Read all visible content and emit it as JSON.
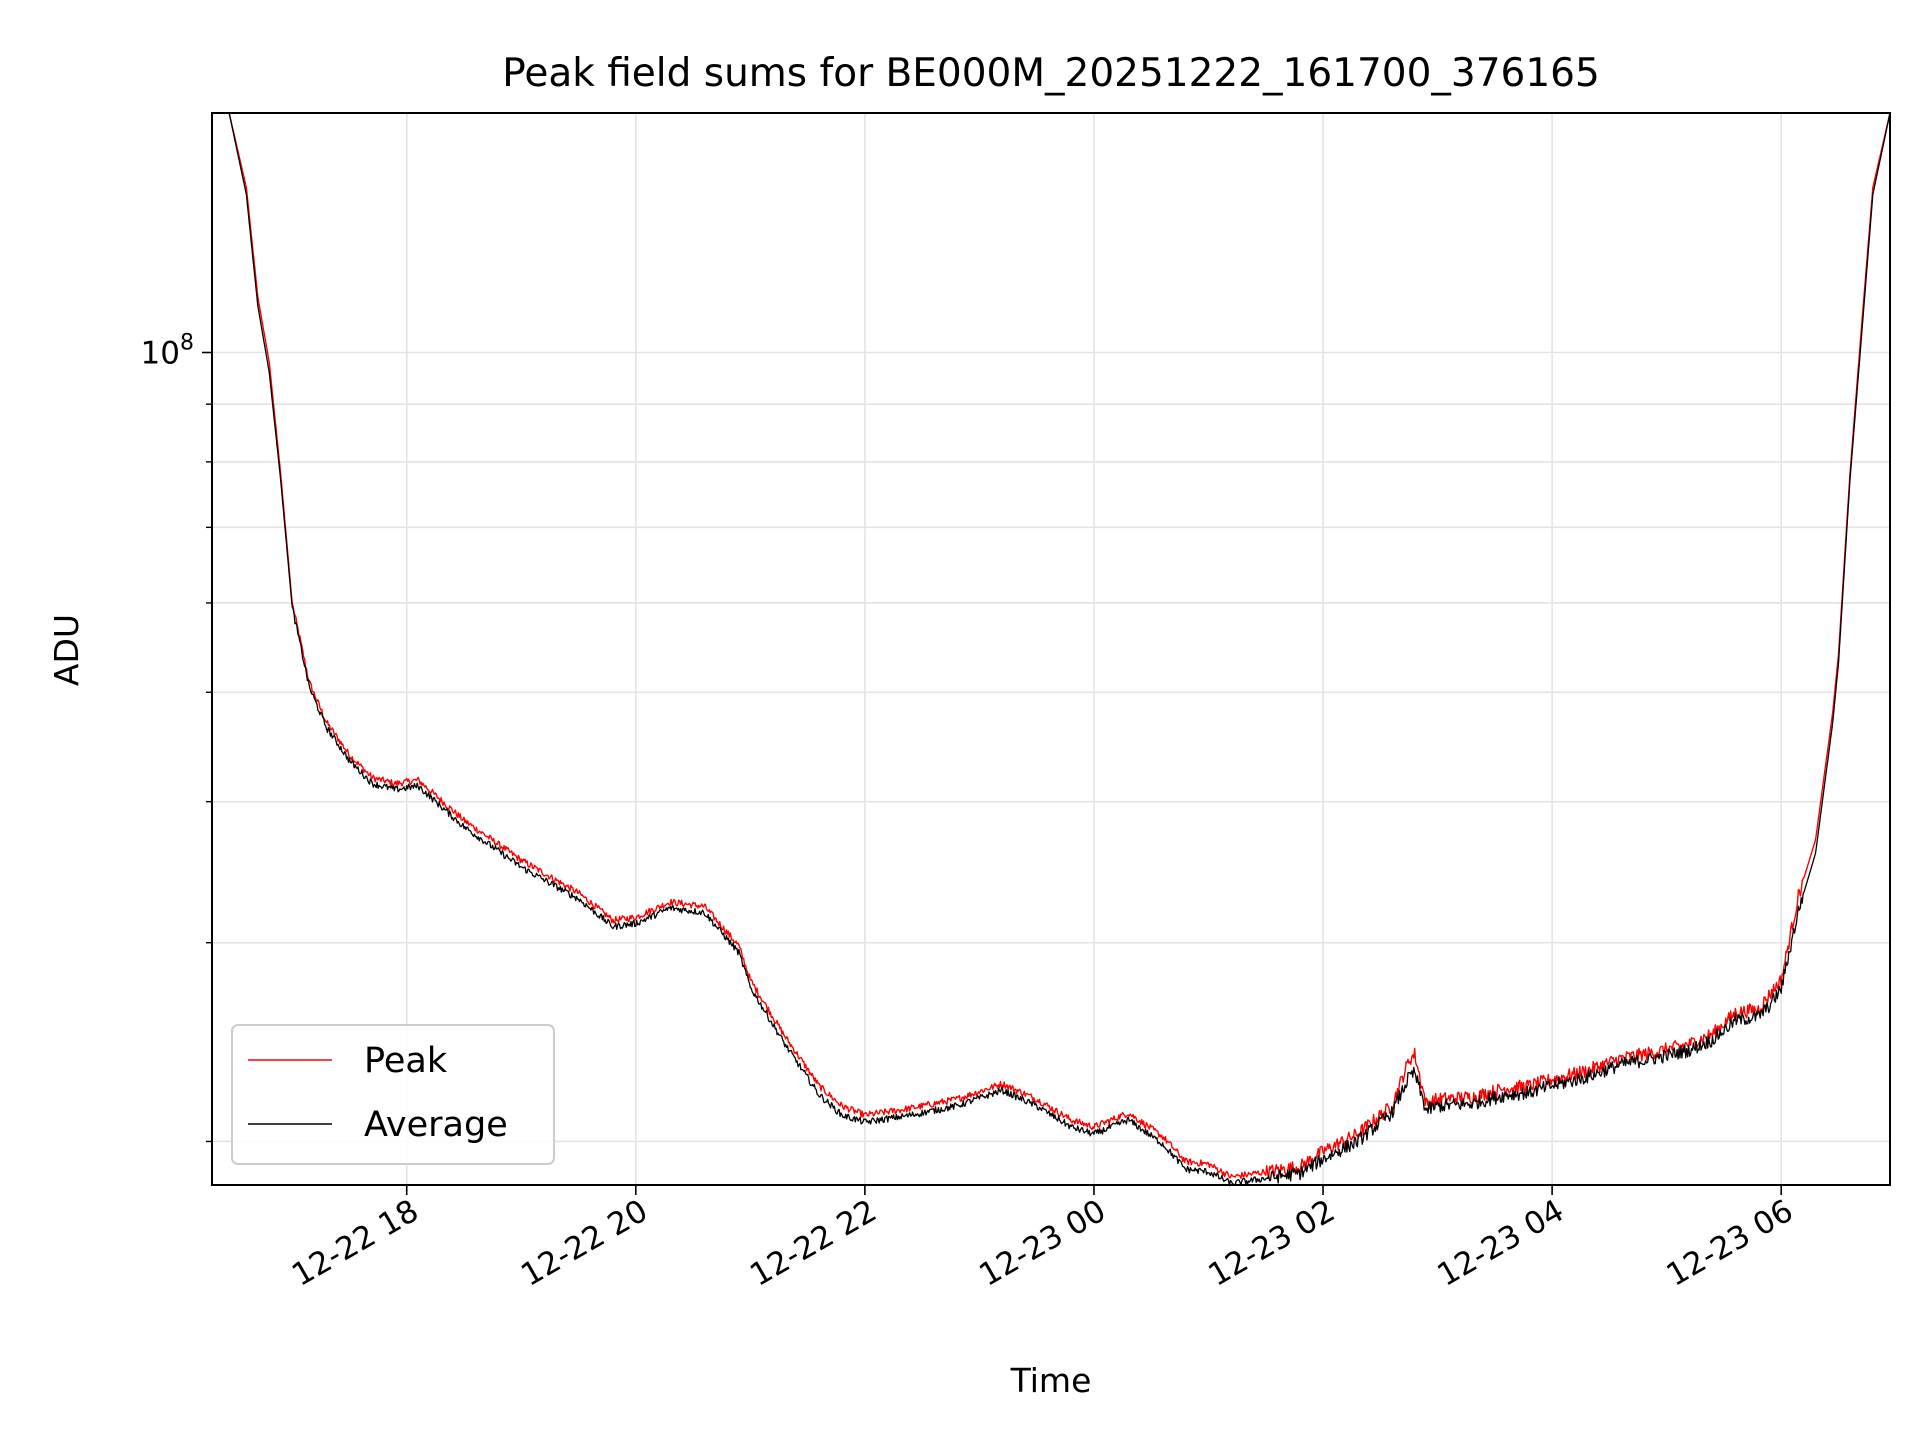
{
  "chart_data": {
    "type": "line",
    "title": "Peak field sums for BE000M_20251222_161700_376165",
    "xlabel": "Time",
    "ylabel": "ADU",
    "yscale": "log",
    "grid": true,
    "legend_position": "lower-left",
    "x_unit": "hours since 12-22 00:00",
    "xlim": [
      16.3,
      30.95
    ],
    "ylim": [
      18300000,
      163000000
    ],
    "x_ticks": [
      {
        "value": 18,
        "label": "12-22 18"
      },
      {
        "value": 20,
        "label": "12-22 20"
      },
      {
        "value": 22,
        "label": "12-22 22"
      },
      {
        "value": 24,
        "label": "12-23 00"
      },
      {
        "value": 26,
        "label": "12-23 02"
      },
      {
        "value": 28,
        "label": "12-23 04"
      },
      {
        "value": 30,
        "label": "12-23 06"
      }
    ],
    "y_major_tick": {
      "value": 100000000,
      "base": "10",
      "exponent": "8"
    },
    "y_minor_ticks": [
      20000000,
      30000000,
      40000000,
      50000000,
      60000000,
      70000000,
      80000000,
      90000000,
      200000000
    ],
    "series": [
      {
        "name": "Peak",
        "color": "#ff0000",
        "x": [
          16.45,
          16.6,
          16.7,
          16.8,
          16.9,
          17.0,
          17.15,
          17.3,
          17.4,
          17.5,
          17.7,
          17.9,
          18.1,
          18.5,
          19.0,
          19.5,
          19.8,
          20.0,
          20.3,
          20.6,
          20.9,
          21.0,
          21.3,
          21.6,
          21.8,
          22.0,
          22.4,
          22.8,
          23.2,
          23.5,
          23.8,
          24.0,
          24.3,
          24.6,
          24.8,
          25.0,
          25.2,
          25.5,
          25.8,
          26.0,
          26.3,
          26.6,
          26.75,
          26.8,
          26.9,
          27.0,
          27.3,
          27.6,
          27.8,
          28.0,
          28.3,
          28.6,
          28.9,
          29.2,
          29.4,
          29.6,
          29.8,
          29.9,
          30.0,
          30.15,
          30.3,
          30.45,
          30.5,
          30.6,
          30.7,
          30.8,
          30.95
        ],
        "y": [
          163000000,
          140000000,
          112000000,
          98000000,
          78000000,
          60000000,
          51000000,
          47000000,
          45500000,
          44000000,
          42000000,
          41500000,
          41800000,
          38500000,
          35500000,
          33200000,
          31400000,
          31600000,
          32600000,
          32300000,
          29800000,
          27800000,
          24800000,
          22400000,
          21500000,
          21100000,
          21400000,
          21800000,
          22500000,
          21800000,
          20900000,
          20600000,
          21200000,
          20200000,
          19200000,
          19100000,
          18600000,
          18800000,
          19000000,
          19600000,
          20300000,
          21500000,
          23600000,
          23900000,
          21600000,
          21800000,
          21900000,
          22300000,
          22400000,
          22700000,
          23100000,
          23700000,
          24000000,
          24400000,
          24900000,
          26000000,
          26200000,
          27000000,
          27800000,
          33000000,
          37000000,
          48000000,
          54000000,
          78000000,
          105000000,
          140000000,
          163000000
        ]
      },
      {
        "name": "Average",
        "color": "#000000",
        "x": [
          16.45,
          16.6,
          16.7,
          16.8,
          16.9,
          17.0,
          17.15,
          17.3,
          17.4,
          17.5,
          17.7,
          17.9,
          18.1,
          18.5,
          19.0,
          19.5,
          19.8,
          20.0,
          20.3,
          20.6,
          20.9,
          21.0,
          21.3,
          21.6,
          21.8,
          22.0,
          22.4,
          22.8,
          23.2,
          23.5,
          23.8,
          24.0,
          24.3,
          24.6,
          24.8,
          25.0,
          25.2,
          25.5,
          25.8,
          26.0,
          26.3,
          26.6,
          26.75,
          26.8,
          26.9,
          27.0,
          27.3,
          27.6,
          27.8,
          28.0,
          28.3,
          28.6,
          28.9,
          29.2,
          29.4,
          29.6,
          29.8,
          29.9,
          30.0,
          30.15,
          30.3,
          30.45,
          30.5,
          30.6,
          30.7,
          30.8,
          30.95
        ],
        "y": [
          163000000,
          138000000,
          110000000,
          96000000,
          77000000,
          59500000,
          50500000,
          46500000,
          45000000,
          43500000,
          41500000,
          41000000,
          41300000,
          38000000,
          35000000,
          32800000,
          31000000,
          31200000,
          32200000,
          31900000,
          29400000,
          27400000,
          24400000,
          22000000,
          21100000,
          20800000,
          21100000,
          21500000,
          22200000,
          21500000,
          20600000,
          20300000,
          20900000,
          19900000,
          18900000,
          18800000,
          18350000,
          18550000,
          18750000,
          19300000,
          20000000,
          21200000,
          22800000,
          23000000,
          21300000,
          21500000,
          21600000,
          22000000,
          22100000,
          22400000,
          22800000,
          23400000,
          23700000,
          24100000,
          24600000,
          25600000,
          25800000,
          26400000,
          27300000,
          32000000,
          36000000,
          47000000,
          53000000,
          77000000,
          103000000,
          138000000,
          163000000
        ]
      }
    ]
  }
}
